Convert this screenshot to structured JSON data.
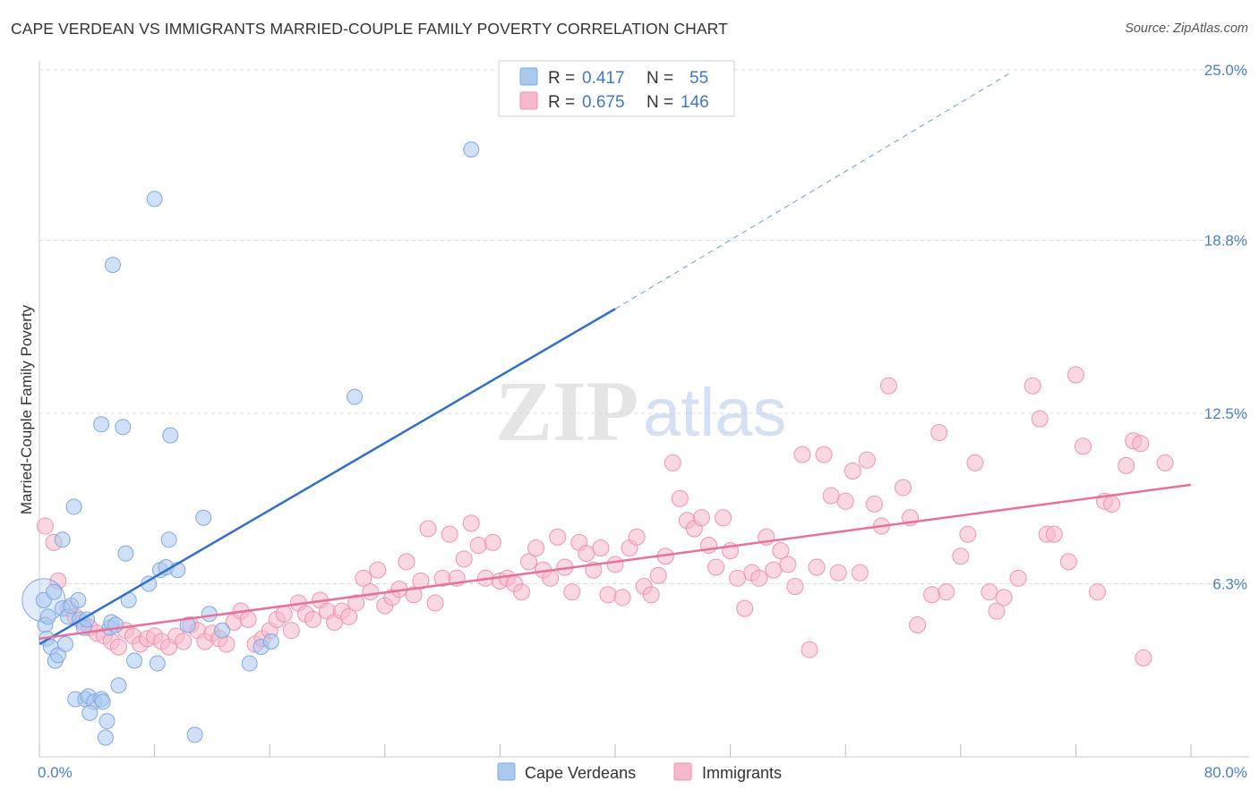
{
  "header": {
    "title": "CAPE VERDEAN VS IMMIGRANTS MARRIED-COUPLE FAMILY POVERTY CORRELATION CHART",
    "source": "Source: ZipAtlas.com"
  },
  "watermark": {
    "zip": "ZIP",
    "atlas": "atlas"
  },
  "colors": {
    "blue_fill": "#aac8f0",
    "blue_stroke": "#7fa8de",
    "blue_line": "#2f6fcf",
    "pink_fill": "#f6b8cb",
    "pink_stroke": "#ee93b0",
    "pink_line": "#e8709a",
    "grid": "#dddddd",
    "axis_label": "#4a7fc9"
  },
  "legend": {
    "rows": [
      {
        "r_label": "R =",
        "r_value": "0.417",
        "n_label": "N =",
        "n_value": "55"
      },
      {
        "r_label": "R =",
        "r_value": "0.675",
        "n_label": "N =",
        "n_value": "146"
      }
    ]
  },
  "bottom_legend": {
    "items": [
      "Cape Verdeans",
      "Immigrants"
    ]
  },
  "chart_data": {
    "type": "scatter",
    "title": "CAPE VERDEAN VS IMMIGRANTS MARRIED-COUPLE FAMILY POVERTY CORRELATION CHART",
    "xlabel": "",
    "ylabel": "Married-Couple Family Poverty",
    "xlim": [
      0,
      80
    ],
    "ylim": [
      0,
      25
    ],
    "x_tick_labels": [
      "0.0%",
      "80.0%"
    ],
    "y_ticks": [
      6.3,
      12.5,
      18.8,
      25.0
    ],
    "y_tick_labels": [
      "6.3%",
      "12.5%",
      "18.8%",
      "25.0%"
    ],
    "grid": true,
    "series": [
      {
        "name": "Cape Verdeans",
        "r": 0.417,
        "n": 55,
        "trend": {
          "x0": 0,
          "y0": 4.1,
          "x1": 40,
          "y1": 16.3,
          "dash_to_x": 67.5,
          "dash_to_y": 24.9
        },
        "points": [
          [
            0.3,
            5.7
          ],
          [
            0.4,
            4.8
          ],
          [
            0.6,
            5.1
          ],
          [
            0.5,
            4.3
          ],
          [
            0.8,
            4.0
          ],
          [
            1.0,
            6.0
          ],
          [
            1.1,
            3.5
          ],
          [
            1.3,
            3.7
          ],
          [
            1.6,
            5.4
          ],
          [
            1.8,
            4.1
          ],
          [
            2.0,
            5.1
          ],
          [
            2.2,
            5.5
          ],
          [
            2.4,
            9.1
          ],
          [
            2.7,
            5.7
          ],
          [
            1.6,
            7.9
          ],
          [
            2.8,
            5.0
          ],
          [
            3.1,
            4.7
          ],
          [
            3.3,
            5.0
          ],
          [
            2.5,
            2.1
          ],
          [
            3.2,
            2.1
          ],
          [
            3.4,
            2.2
          ],
          [
            3.8,
            2.0
          ],
          [
            4.3,
            2.1
          ],
          [
            4.7,
            1.3
          ],
          [
            4.6,
            0.7
          ],
          [
            3.5,
            1.6
          ],
          [
            4.4,
            2.0
          ],
          [
            4.9,
            4.7
          ],
          [
            5.0,
            4.9
          ],
          [
            5.3,
            4.8
          ],
          [
            5.5,
            2.6
          ],
          [
            6.0,
            7.4
          ],
          [
            6.2,
            5.7
          ],
          [
            6.6,
            3.5
          ],
          [
            7.6,
            6.3
          ],
          [
            8.2,
            3.4
          ],
          [
            8.4,
            6.8
          ],
          [
            8.8,
            6.9
          ],
          [
            9.1,
            11.7
          ],
          [
            9.0,
            7.9
          ],
          [
            9.6,
            6.8
          ],
          [
            10.3,
            4.8
          ],
          [
            10.8,
            0.8
          ],
          [
            11.4,
            8.7
          ],
          [
            11.8,
            5.2
          ],
          [
            12.7,
            4.6
          ],
          [
            14.6,
            3.4
          ],
          [
            15.4,
            4.0
          ],
          [
            16.1,
            4.2
          ],
          [
            21.9,
            13.1
          ],
          [
            30.0,
            22.1
          ],
          [
            8.0,
            20.3
          ],
          [
            5.1,
            17.9
          ],
          [
            4.3,
            12.1
          ],
          [
            5.8,
            12.0
          ]
        ]
      },
      {
        "name": "Immigrants",
        "r": 0.675,
        "n": 146,
        "trend": {
          "x0": 0,
          "y0": 4.3,
          "x1": 80,
          "y1": 9.9
        },
        "points": [
          [
            0.4,
            8.4
          ],
          [
            1.0,
            7.8
          ],
          [
            1.3,
            6.4
          ],
          [
            2.0,
            5.4
          ],
          [
            2.5,
            5.1
          ],
          [
            3.0,
            4.9
          ],
          [
            3.5,
            4.7
          ],
          [
            4.0,
            4.5
          ],
          [
            4.5,
            4.4
          ],
          [
            5.0,
            4.2
          ],
          [
            5.5,
            4.0
          ],
          [
            6.0,
            4.6
          ],
          [
            6.5,
            4.4
          ],
          [
            7.0,
            4.1
          ],
          [
            7.5,
            4.3
          ],
          [
            8.0,
            4.4
          ],
          [
            8.5,
            4.2
          ],
          [
            9.0,
            4.0
          ],
          [
            9.5,
            4.4
          ],
          [
            10.0,
            4.2
          ],
          [
            10.5,
            4.8
          ],
          [
            11.0,
            4.6
          ],
          [
            11.5,
            4.2
          ],
          [
            12.0,
            4.5
          ],
          [
            12.5,
            4.3
          ],
          [
            13.0,
            4.1
          ],
          [
            13.5,
            4.9
          ],
          [
            14.0,
            5.3
          ],
          [
            14.5,
            5.0
          ],
          [
            15.0,
            4.1
          ],
          [
            15.5,
            4.3
          ],
          [
            16.0,
            4.6
          ],
          [
            16.5,
            5.0
          ],
          [
            17.0,
            5.2
          ],
          [
            17.5,
            4.6
          ],
          [
            18.0,
            5.6
          ],
          [
            18.5,
            5.2
          ],
          [
            19.0,
            5.0
          ],
          [
            19.5,
            5.7
          ],
          [
            20.0,
            5.3
          ],
          [
            20.5,
            4.9
          ],
          [
            21.0,
            5.3
          ],
          [
            21.5,
            5.1
          ],
          [
            22.0,
            5.6
          ],
          [
            22.5,
            6.5
          ],
          [
            23.0,
            6.0
          ],
          [
            23.5,
            6.8
          ],
          [
            24.0,
            5.5
          ],
          [
            24.5,
            5.8
          ],
          [
            25.0,
            6.1
          ],
          [
            25.5,
            7.1
          ],
          [
            26.0,
            5.9
          ],
          [
            26.5,
            6.4
          ],
          [
            27.0,
            8.3
          ],
          [
            27.5,
            5.6
          ],
          [
            28.0,
            6.5
          ],
          [
            28.5,
            8.1
          ],
          [
            29.0,
            6.5
          ],
          [
            29.5,
            7.2
          ],
          [
            30.0,
            8.5
          ],
          [
            30.5,
            7.7
          ],
          [
            31.0,
            6.5
          ],
          [
            31.5,
            7.8
          ],
          [
            32.0,
            6.4
          ],
          [
            32.5,
            6.5
          ],
          [
            33.0,
            6.3
          ],
          [
            33.5,
            6.0
          ],
          [
            34.0,
            7.1
          ],
          [
            34.5,
            7.6
          ],
          [
            35.0,
            6.8
          ],
          [
            35.5,
            6.5
          ],
          [
            36.0,
            8.0
          ],
          [
            36.5,
            6.9
          ],
          [
            37.0,
            6.0
          ],
          [
            37.5,
            7.8
          ],
          [
            38.0,
            7.4
          ],
          [
            38.5,
            6.8
          ],
          [
            39.0,
            7.6
          ],
          [
            39.5,
            5.9
          ],
          [
            40.0,
            7.0
          ],
          [
            40.5,
            5.8
          ],
          [
            41.0,
            7.6
          ],
          [
            41.5,
            8.0
          ],
          [
            42.0,
            6.2
          ],
          [
            42.5,
            5.9
          ],
          [
            43.0,
            6.6
          ],
          [
            43.5,
            7.3
          ],
          [
            44.0,
            10.7
          ],
          [
            44.5,
            9.4
          ],
          [
            45.0,
            8.6
          ],
          [
            45.5,
            8.3
          ],
          [
            46.0,
            8.7
          ],
          [
            46.5,
            7.7
          ],
          [
            47.0,
            6.9
          ],
          [
            47.5,
            8.7
          ],
          [
            48.0,
            7.5
          ],
          [
            48.5,
            6.5
          ],
          [
            49.0,
            5.4
          ],
          [
            49.5,
            6.7
          ],
          [
            50.0,
            6.5
          ],
          [
            50.5,
            8.0
          ],
          [
            51.0,
            6.8
          ],
          [
            51.5,
            7.5
          ],
          [
            52.0,
            7.0
          ],
          [
            52.5,
            6.2
          ],
          [
            53.0,
            11.0
          ],
          [
            53.5,
            3.9
          ],
          [
            54.0,
            6.9
          ],
          [
            54.5,
            11.0
          ],
          [
            55.0,
            9.5
          ],
          [
            55.5,
            6.7
          ],
          [
            56.0,
            9.3
          ],
          [
            56.5,
            10.4
          ],
          [
            57.0,
            6.7
          ],
          [
            57.5,
            10.8
          ],
          [
            58.0,
            9.2
          ],
          [
            58.5,
            8.4
          ],
          [
            59.0,
            13.5
          ],
          [
            60.0,
            9.8
          ],
          [
            60.5,
            8.7
          ],
          [
            61.0,
            4.8
          ],
          [
            62.0,
            5.9
          ],
          [
            62.5,
            11.8
          ],
          [
            63.0,
            6.0
          ],
          [
            64.0,
            7.3
          ],
          [
            64.5,
            8.1
          ],
          [
            65.0,
            10.7
          ],
          [
            66.0,
            6.0
          ],
          [
            66.5,
            5.3
          ],
          [
            67.0,
            5.8
          ],
          [
            68.0,
            6.5
          ],
          [
            69.0,
            13.5
          ],
          [
            69.5,
            12.3
          ],
          [
            70.0,
            8.1
          ],
          [
            70.5,
            8.1
          ],
          [
            71.5,
            7.1
          ],
          [
            72.0,
            13.9
          ],
          [
            72.5,
            11.3
          ],
          [
            73.5,
            6.0
          ],
          [
            74.0,
            9.3
          ],
          [
            74.5,
            9.2
          ],
          [
            75.5,
            10.6
          ],
          [
            76.0,
            11.5
          ],
          [
            76.5,
            11.4
          ],
          [
            76.7,
            3.6
          ],
          [
            78.2,
            10.7
          ]
        ]
      }
    ]
  }
}
